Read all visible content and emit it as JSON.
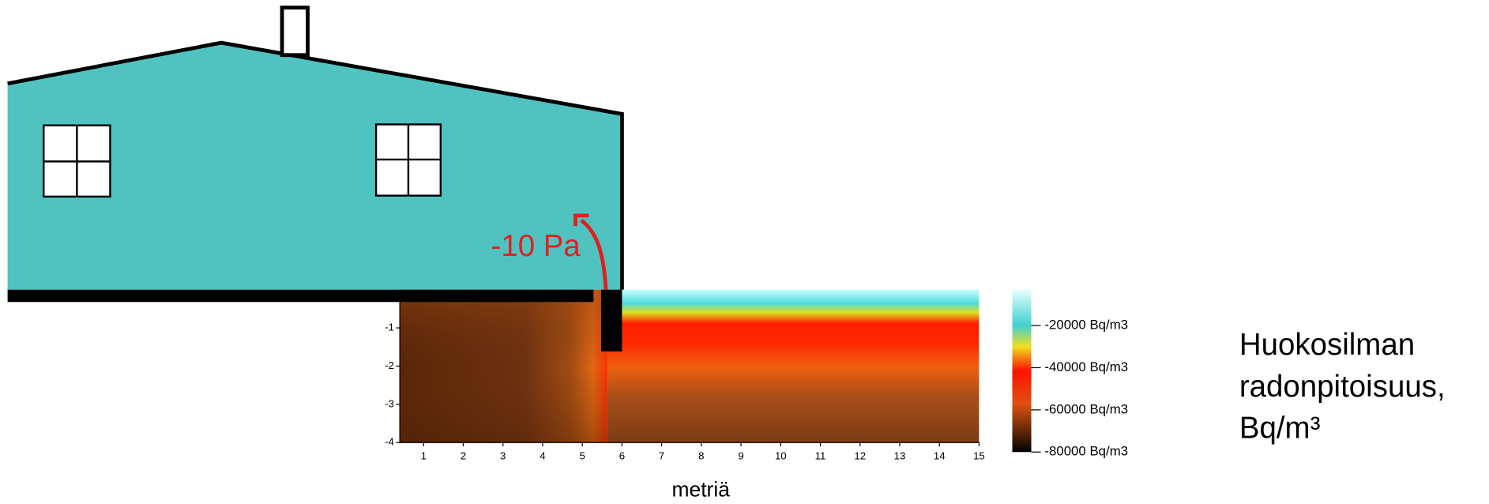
{
  "chart_data": {
    "type": "heatmap",
    "annotation": "-10 Pa",
    "x_label": "metriä",
    "xlim": [
      0.4,
      15
    ],
    "xticks": [
      1,
      2,
      3,
      4,
      5,
      6,
      7,
      8,
      9,
      10,
      11,
      12,
      13,
      14,
      15
    ],
    "ylim": [
      -4,
      0
    ],
    "yticks": [
      -1,
      -2,
      -3,
      -4
    ],
    "colorbar": {
      "clim": [
        -80000,
        -3000
      ],
      "ticks": [
        {
          "value": -20000,
          "label": "-20000 Bq/m3"
        },
        {
          "value": -40000,
          "label": "-40000 Bq/m3"
        },
        {
          "value": -60000,
          "label": "-60000 Bq/m3"
        },
        {
          "value": -80000,
          "label": "-80000 Bq/m3"
        }
      ],
      "title": [
        "Huokosilman",
        "radonpitoisuus,",
        "Bq/m³"
      ]
    }
  }
}
